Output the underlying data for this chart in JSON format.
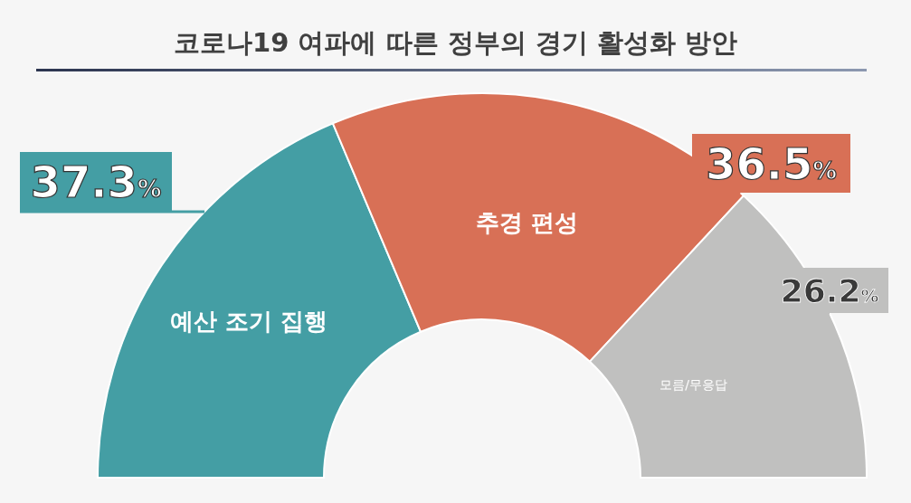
{
  "chart_data": {
    "type": "donut",
    "title": "코로나19 여파에 따른 정부의 경기 활성화 방안",
    "categories": [
      "예산 조기 집행",
      "추경 편성",
      "모름/무응답"
    ],
    "values": [
      37.3,
      36.5,
      26.2
    ],
    "colors": [
      "#449ea4",
      "#d87056",
      "#c0c0bf"
    ],
    "value_labels": [
      "37.3%",
      "36.5%",
      "26.2%"
    ]
  }
}
